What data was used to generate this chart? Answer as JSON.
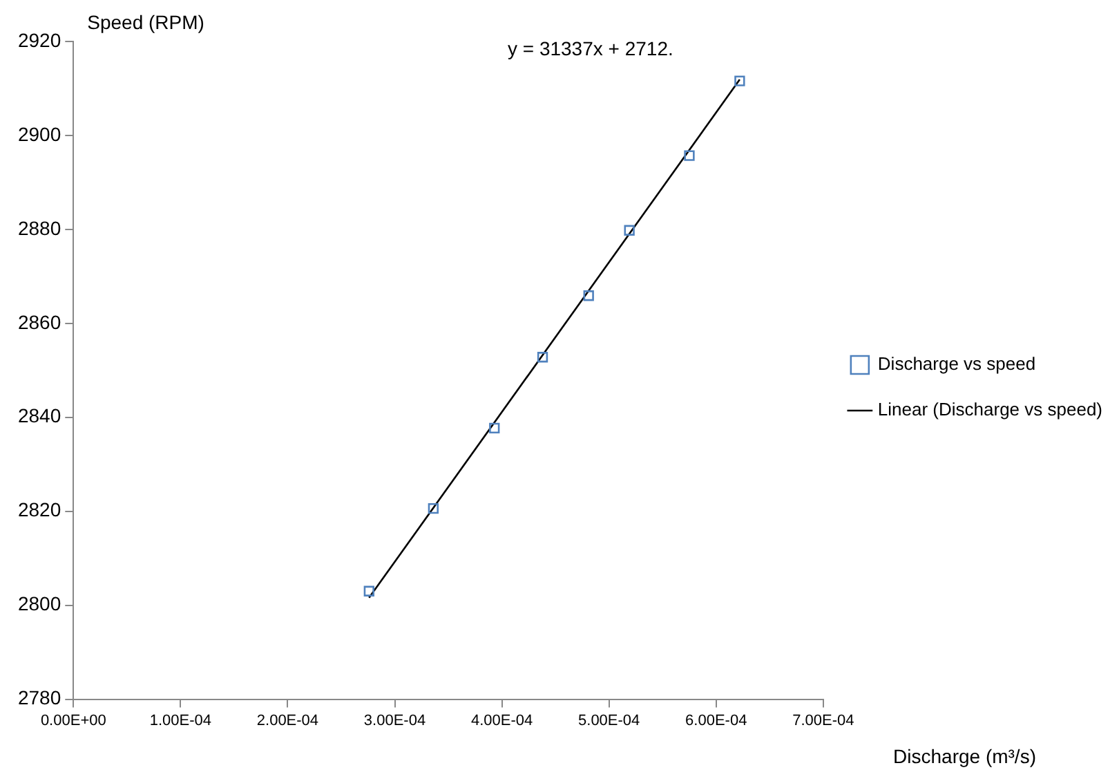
{
  "chart_data": {
    "type": "scatter",
    "xlabel": "Discharge (m³/s)",
    "ylabel": "Speed (RPM)",
    "annotations": [
      "y = 31337x + 2712."
    ],
    "series": [
      {
        "name": "Discharge vs speed",
        "color": "#4f81bd",
        "marker": "square",
        "x": [
          0.000276,
          0.000336,
          0.000393,
          0.000438,
          0.000481,
          0.000519,
          0.000575,
          0.000622
        ],
        "values": [
          2803,
          2820.6,
          2837.7,
          2852.8,
          2865.9,
          2879.8,
          2895.7,
          2911.6
        ]
      },
      {
        "name": "Linear (Discharge vs speed)",
        "type": "line",
        "color": "#000000",
        "marker": "none",
        "line_style": "solid",
        "x": [
          0.000276,
          0.000622
        ],
        "values": [
          2801.6,
          2911.9
        ]
      }
    ],
    "xlim": [
      0,
      0.0007
    ],
    "xticks": [
      {
        "value": 0,
        "label": "0.00E+00"
      },
      {
        "value": 0.0001,
        "label": "1.00E-04"
      },
      {
        "value": 0.0002,
        "label": "2.00E-04"
      },
      {
        "value": 0.0003,
        "label": "3.00E-04"
      },
      {
        "value": 0.0004,
        "label": "4.00E-04"
      },
      {
        "value": 0.0005,
        "label": "5.00E-04"
      },
      {
        "value": 0.0006,
        "label": "6.00E-04"
      },
      {
        "value": 0.0007,
        "label": "7.00E-04"
      }
    ],
    "ylim": [
      2780,
      2920
    ],
    "yticks": [
      2780,
      2800,
      2820,
      2840,
      2860,
      2880,
      2900,
      2920
    ],
    "grid": false,
    "legend": "right"
  }
}
